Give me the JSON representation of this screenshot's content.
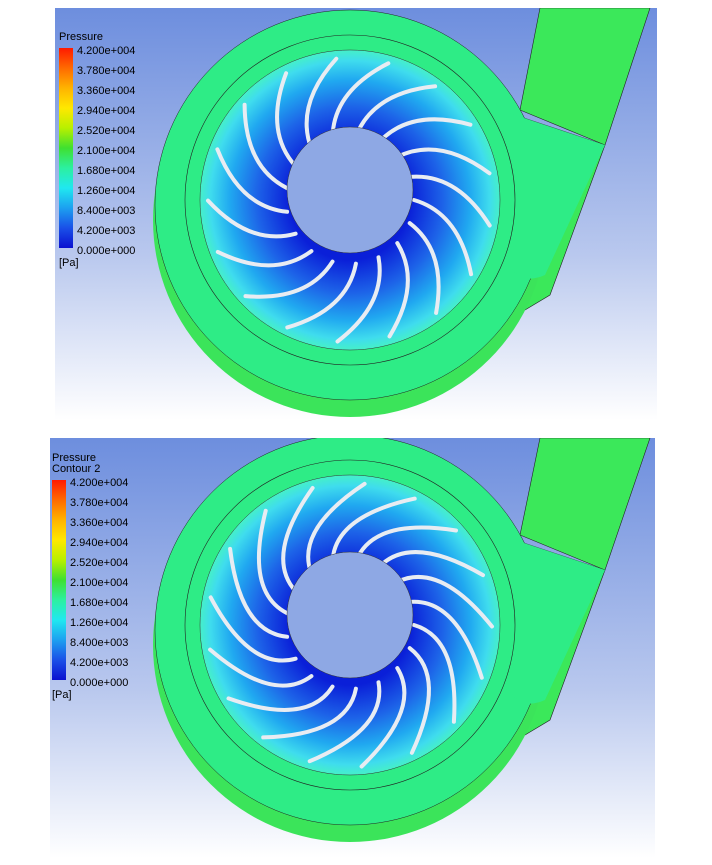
{
  "panels": [
    {
      "legend": {
        "title": "Pressure",
        "labels": [
          "4.200e+004",
          "3.780e+004",
          "3.360e+004",
          "2.940e+004",
          "2.520e+004",
          "2.100e+004",
          "1.680e+004",
          "1.260e+004",
          "8.400e+003",
          "4.200e+003",
          "0.000e+000"
        ],
        "unit": "[Pa]"
      }
    },
    {
      "legend": {
        "title": "Pressure",
        "subtitle": "Contour 2",
        "labels": [
          "4.200e+004",
          "3.780e+004",
          "3.360e+004",
          "2.940e+004",
          "2.520e+004",
          "2.100e+004",
          "1.680e+004",
          "1.260e+004",
          "8.400e+003",
          "4.200e+003",
          "0.000e+000"
        ],
        "unit": "[Pa]"
      }
    }
  ]
}
